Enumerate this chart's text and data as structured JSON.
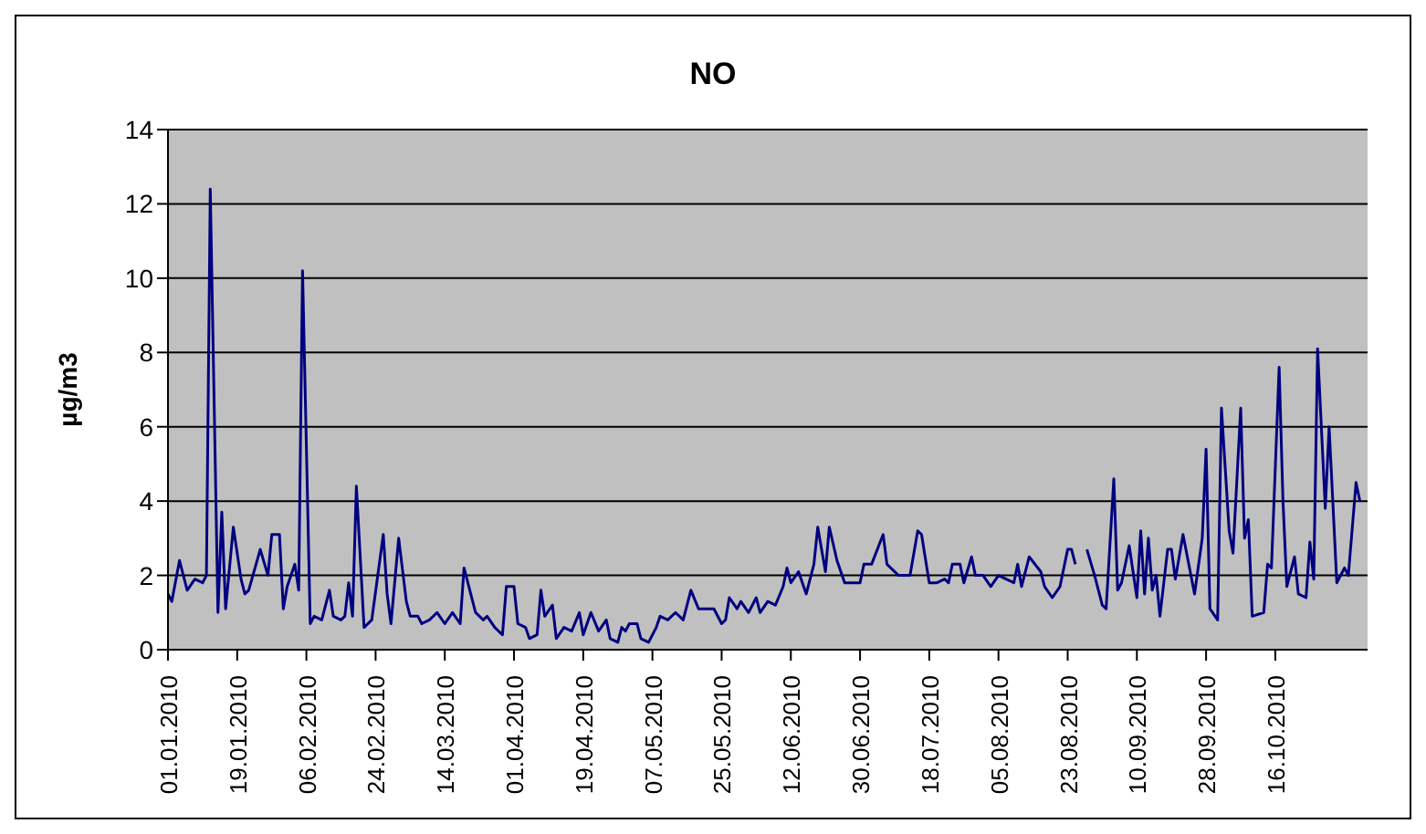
{
  "chart_data": {
    "type": "line",
    "title": "NO",
    "ylabel": "µg/m3",
    "color": "#000080",
    "grid": "y",
    "legend": false,
    "marker": "none",
    "line_style": "solid",
    "xlim": [
      "2010-01-01",
      "2010-11-09"
    ],
    "xticks": [
      {
        "value": "2010-01-01",
        "label": "01.01.2010"
      },
      {
        "value": "2010-01-19",
        "label": "19.01.2010"
      },
      {
        "value": "2010-02-06",
        "label": "06.02.2010"
      },
      {
        "value": "2010-02-24",
        "label": "24.02.2010"
      },
      {
        "value": "2010-03-14",
        "label": "14.03.2010"
      },
      {
        "value": "2010-04-01",
        "label": "01.04.2010"
      },
      {
        "value": "2010-04-19",
        "label": "19.04.2010"
      },
      {
        "value": "2010-05-07",
        "label": "07.05.2010"
      },
      {
        "value": "2010-05-25",
        "label": "25.05.2010"
      },
      {
        "value": "2010-06-12",
        "label": "12.06.2010"
      },
      {
        "value": "2010-06-30",
        "label": "30.06.2010"
      },
      {
        "value": "2010-07-18",
        "label": "18.07.2010"
      },
      {
        "value": "2010-08-05",
        "label": "05.08.2010"
      },
      {
        "value": "2010-08-23",
        "label": "23.08.2010"
      },
      {
        "value": "2010-09-10",
        "label": "10.09.2010"
      },
      {
        "value": "2010-09-28",
        "label": "28.09.2010"
      },
      {
        "value": "2010-10-16",
        "label": "16.10.2010"
      }
    ],
    "ylim": [
      0,
      14
    ],
    "yticks": [
      0,
      2,
      4,
      6,
      8,
      10,
      12,
      14
    ],
    "x": [
      "2010-01-01",
      "2010-01-02",
      "2010-01-04",
      "2010-01-06",
      "2010-01-08",
      "2010-01-10",
      "2010-01-11",
      "2010-01-12",
      "2010-01-14",
      "2010-01-15",
      "2010-01-16",
      "2010-01-18",
      "2010-01-20",
      "2010-01-21",
      "2010-01-22",
      "2010-01-25",
      "2010-01-27",
      "2010-01-28",
      "2010-01-30",
      "2010-01-31",
      "2010-02-01",
      "2010-02-03",
      "2010-02-04",
      "2010-02-05",
      "2010-02-07",
      "2010-02-08",
      "2010-02-10",
      "2010-02-12",
      "2010-02-13",
      "2010-02-15",
      "2010-02-16",
      "2010-02-17",
      "2010-02-18",
      "2010-02-19",
      "2010-02-21",
      "2010-02-23",
      "2010-02-26",
      "2010-02-27",
      "2010-02-28",
      "2010-03-02",
      "2010-03-04",
      "2010-03-05",
      "2010-03-07",
      "2010-03-08",
      "2010-03-10",
      "2010-03-12",
      "2010-03-14",
      "2010-03-16",
      "2010-03-18",
      "2010-03-19",
      "2010-03-22",
      "2010-03-24",
      "2010-03-25",
      "2010-03-27",
      "2010-03-29",
      "2010-03-30",
      "2010-04-01",
      "2010-04-02",
      "2010-04-04",
      "2010-04-05",
      "2010-04-07",
      "2010-04-08",
      "2010-04-09",
      "2010-04-11",
      "2010-04-12",
      "2010-04-14",
      "2010-04-16",
      "2010-04-18",
      "2010-04-19",
      "2010-04-21",
      "2010-04-23",
      "2010-04-25",
      "2010-04-26",
      "2010-04-28",
      "2010-04-29",
      "2010-04-30",
      "2010-05-01",
      "2010-05-03",
      "2010-05-04",
      "2010-05-06",
      "2010-05-08",
      "2010-05-09",
      "2010-05-11",
      "2010-05-13",
      "2010-05-15",
      "2010-05-17",
      "2010-05-19",
      "2010-05-23",
      "2010-05-25",
      "2010-05-26",
      "2010-05-27",
      "2010-05-29",
      "2010-05-30",
      "2010-06-01",
      "2010-06-03",
      "2010-06-04",
      "2010-06-06",
      "2010-06-08",
      "2010-06-10",
      "2010-06-11",
      "2010-06-12",
      "2010-06-14",
      "2010-06-16",
      "2010-06-18",
      "2010-06-19",
      "2010-06-21",
      "2010-06-22",
      "2010-06-24",
      "2010-06-26",
      "2010-06-30",
      "2010-07-01",
      "2010-07-03",
      "2010-07-06",
      "2010-07-07",
      "2010-07-10",
      "2010-07-12",
      "2010-07-13",
      "2010-07-15",
      "2010-07-16",
      "2010-07-18",
      "2010-07-20",
      "2010-07-22",
      "2010-07-23",
      "2010-07-24",
      "2010-07-26",
      "2010-07-27",
      "2010-07-29",
      "2010-07-30",
      "2010-08-01",
      "2010-08-03",
      "2010-08-05",
      "2010-08-07",
      "2010-08-09",
      "2010-08-10",
      "2010-08-11",
      "2010-08-13",
      "2010-08-16",
      "2010-08-17",
      "2010-08-19",
      "2010-08-21",
      "2010-08-23",
      "2010-08-24",
      "2010-08-25",
      "2010-08-26",
      "2010-08-28",
      "2010-08-30",
      "2010-09-01",
      "2010-09-02",
      "2010-09-04",
      "2010-09-05",
      "2010-09-06",
      "2010-09-08",
      "2010-09-10",
      "2010-09-11",
      "2010-09-12",
      "2010-09-13",
      "2010-09-14",
      "2010-09-15",
      "2010-09-16",
      "2010-09-18",
      "2010-09-19",
      "2010-09-20",
      "2010-09-22",
      "2010-09-25",
      "2010-09-27",
      "2010-09-28",
      "2010-09-29",
      "2010-10-01",
      "2010-10-02",
      "2010-10-04",
      "2010-10-05",
      "2010-10-07",
      "2010-10-08",
      "2010-10-09",
      "2010-10-10",
      "2010-10-13",
      "2010-10-14",
      "2010-10-15",
      "2010-10-17",
      "2010-10-18",
      "2010-10-19",
      "2010-10-21",
      "2010-10-22",
      "2010-10-24",
      "2010-10-25",
      "2010-10-26",
      "2010-10-27",
      "2010-10-29",
      "2010-10-30",
      "2010-11-01",
      "2010-11-03",
      "2010-11-04",
      "2010-11-06",
      "2010-11-07"
    ],
    "values": [
      1.5,
      1.3,
      2.4,
      1.6,
      1.9,
      1.8,
      2.0,
      12.4,
      1.0,
      3.7,
      1.1,
      3.3,
      1.9,
      1.5,
      1.6,
      2.7,
      2.0,
      3.1,
      3.1,
      1.1,
      1.7,
      2.3,
      1.6,
      10.2,
      0.7,
      0.9,
      0.8,
      1.6,
      0.9,
      0.8,
      0.9,
      1.8,
      0.9,
      4.4,
      0.6,
      0.8,
      3.1,
      1.5,
      0.7,
      3.0,
      1.3,
      0.9,
      0.9,
      0.7,
      0.8,
      1.0,
      0.7,
      1.0,
      0.7,
      2.2,
      1.0,
      0.8,
      0.9,
      0.6,
      0.4,
      1.7,
      1.7,
      0.7,
      0.6,
      0.3,
      0.4,
      1.6,
      0.9,
      1.2,
      0.3,
      0.6,
      0.5,
      1.0,
      0.4,
      1.0,
      0.5,
      0.8,
      0.3,
      0.2,
      0.6,
      0.5,
      0.7,
      0.7,
      0.3,
      0.2,
      0.6,
      0.9,
      0.8,
      1.0,
      0.8,
      1.6,
      1.1,
      1.1,
      0.7,
      0.8,
      1.4,
      1.1,
      1.3,
      1.0,
      1.4,
      1.0,
      1.3,
      1.2,
      1.7,
      2.2,
      1.8,
      2.1,
      1.5,
      2.3,
      3.3,
      2.1,
      3.3,
      2.4,
      1.8,
      1.8,
      2.3,
      2.3,
      3.1,
      2.3,
      2.0,
      2.0,
      2.0,
      3.2,
      3.1,
      1.8,
      1.8,
      1.9,
      1.8,
      2.3,
      2.3,
      1.8,
      2.5,
      2.0,
      2.0,
      1.7,
      2.0,
      1.9,
      1.8,
      2.3,
      1.7,
      2.5,
      2.1,
      1.7,
      1.4,
      1.7,
      2.7,
      2.7,
      2.3,
      null,
      2.7,
      2.0,
      1.2,
      1.1,
      4.6,
      1.6,
      1.8,
      2.8,
      1.4,
      3.2,
      1.5,
      3.0,
      1.6,
      2.0,
      0.9,
      2.7,
      2.7,
      1.9,
      3.1,
      1.5,
      3.0,
      5.4,
      1.1,
      0.8,
      6.5,
      3.2,
      2.6,
      6.5,
      3.0,
      3.5,
      0.9,
      1.0,
      2.3,
      2.2,
      7.6,
      4.0,
      1.7,
      2.5,
      1.5,
      1.4,
      2.9,
      1.9,
      8.1,
      3.8,
      6.0,
      1.8,
      2.2,
      2.0,
      4.5,
      4.0
    ]
  }
}
